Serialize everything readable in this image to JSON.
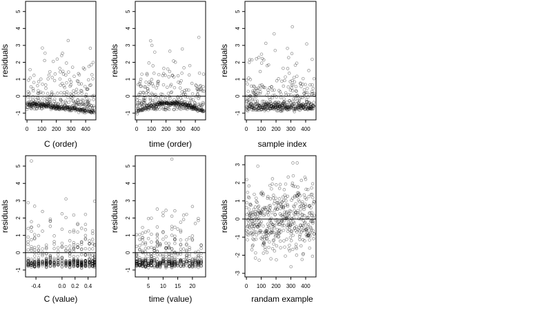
{
  "chart_data": [
    {
      "type": "scatter",
      "xlabel": "C (order)",
      "ylabel": "residuals",
      "xticks": [
        "0",
        "100",
        "200",
        "300",
        "400"
      ],
      "yticks": [
        "-1",
        "0",
        "1",
        "2",
        "3",
        "4",
        "5"
      ],
      "xlim": [
        -10,
        470
      ],
      "ylim": [
        -1.4,
        5.6
      ],
      "hline": 0,
      "pattern": "order_C",
      "points": []
    },
    {
      "type": "scatter",
      "xlabel": "time (order)",
      "ylabel": "residuals",
      "xticks": [
        "0",
        "100",
        "200",
        "300",
        "400"
      ],
      "yticks": [
        "-1",
        "0",
        "1",
        "2",
        "3",
        "4",
        "5"
      ],
      "xlim": [
        -10,
        470
      ],
      "ylim": [
        -1.4,
        5.6
      ],
      "hline": 0,
      "pattern": "order_time",
      "points": []
    },
    {
      "type": "scatter",
      "xlabel": "sample index",
      "ylabel": "residuals",
      "xticks": [
        "0",
        "100",
        "200",
        "300",
        "400"
      ],
      "yticks": [
        "-1",
        "0",
        "1",
        "2",
        "3",
        "4",
        "5"
      ],
      "xlim": [
        -10,
        470
      ],
      "ylim": [
        -1.4,
        5.6
      ],
      "hline": 0,
      "pattern": "sample_index",
      "points": []
    },
    {
      "type": "scatter",
      "xlabel": "C (value)",
      "ylabel": "residuals",
      "xticks": [
        "-0.4",
        "0.0",
        "0.2",
        "0.4"
      ],
      "xtick_values": [
        -0.4,
        0.0,
        0.2,
        0.4
      ],
      "yticks": [
        "-1",
        "0",
        "1",
        "2",
        "3",
        "4",
        "5"
      ],
      "xlim": [
        -0.56,
        0.52
      ],
      "ylim": [
        -1.4,
        5.6
      ],
      "hline": 0,
      "pattern": "value_C",
      "points": []
    },
    {
      "type": "scatter",
      "xlabel": "time (value)",
      "ylabel": "residuals",
      "xticks": [
        "5",
        "10",
        "15",
        "20"
      ],
      "xtick_values": [
        5,
        10,
        15,
        20
      ],
      "yticks": [
        "-1",
        "0",
        "1",
        "2",
        "3",
        "4",
        "5"
      ],
      "xlim": [
        0.5,
        24.5
      ],
      "ylim": [
        -1.4,
        5.6
      ],
      "hline": 0,
      "pattern": "value_time",
      "points": []
    },
    {
      "type": "scatter",
      "xlabel": "randam example",
      "ylabel": "residuals",
      "xticks": [
        "0",
        "100",
        "200",
        "300",
        "400"
      ],
      "yticks": [
        "-3",
        "-2",
        "-1",
        "0",
        "1",
        "2",
        "3"
      ],
      "xlim": [
        -10,
        470
      ],
      "ylim": [
        -3.2,
        3.5
      ],
      "hline": 0,
      "pattern": "random",
      "points": []
    }
  ]
}
